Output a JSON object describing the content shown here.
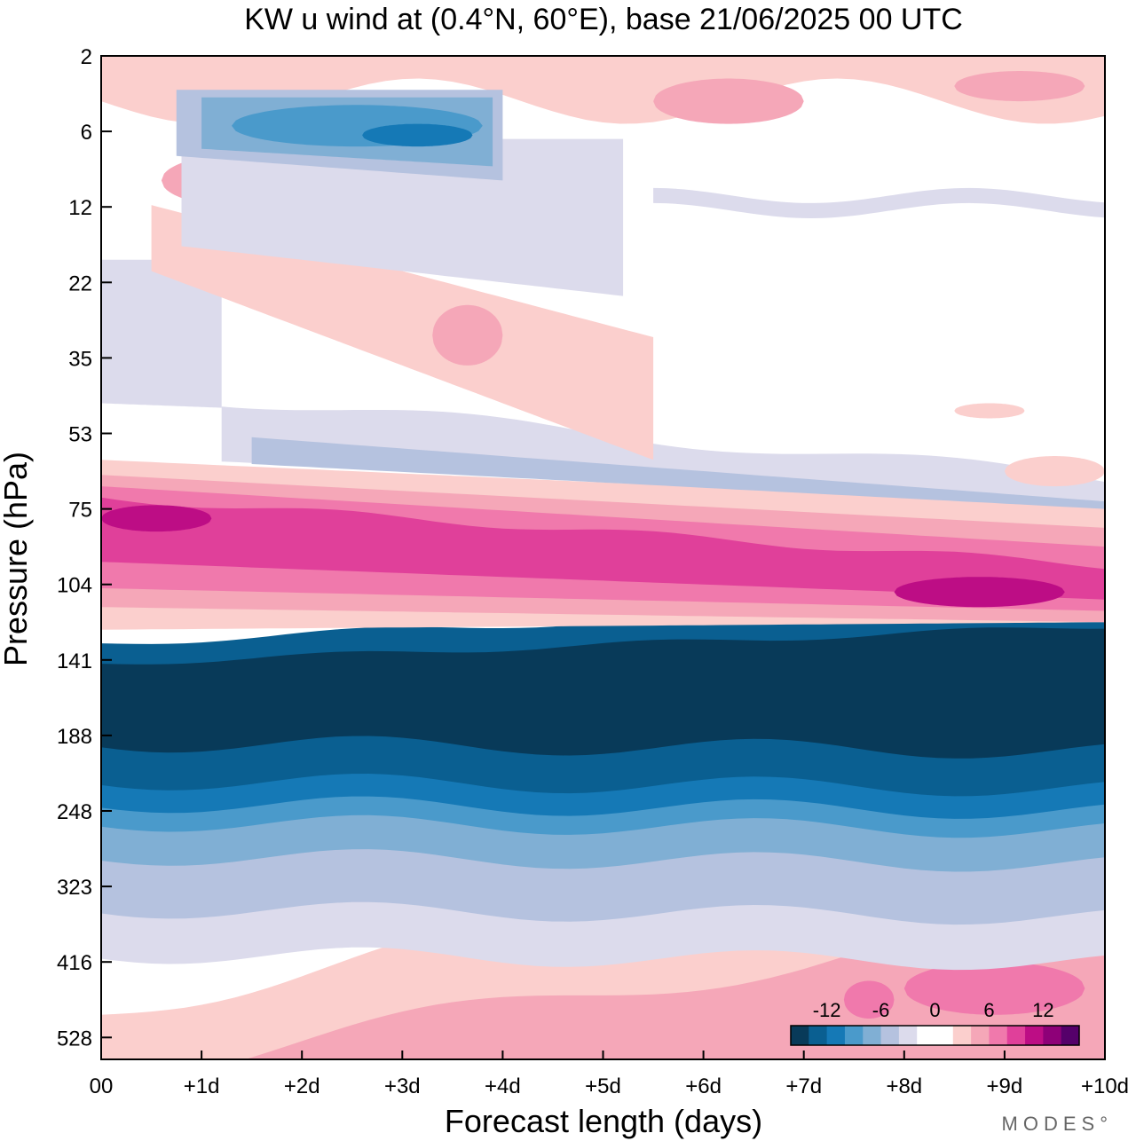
{
  "chart_data": {
    "type": "heatmap",
    "title": "KW u wind at (0.4°N, 60°E),  base 21/06/2025  00 UTC",
    "xlabel": "Forecast length (days)",
    "ylabel": "Pressure (hPa)",
    "x_unit": "days",
    "xlim": [
      0,
      10
    ],
    "x_ticks": [
      0,
      1,
      2,
      3,
      4,
      5,
      6,
      7,
      8,
      9,
      10
    ],
    "x_tick_labels": [
      "00",
      "+1d",
      "+2d",
      "+3d",
      "+4d",
      "+5d",
      "+6d",
      "+7d",
      "+8d",
      "+9d",
      "+10d"
    ],
    "y_tick_labels": [
      "2",
      "6",
      "12",
      "22",
      "35",
      "53",
      "75",
      "104",
      "141",
      "188",
      "248",
      "323",
      "416",
      "528"
    ],
    "y_scale": "pressure levels, 2 hPa at top to ~640 hPa at bottom",
    "colorbar": {
      "tick_labels": [
        "-12",
        "-6",
        "0",
        "6",
        "12"
      ],
      "levels": [
        -16,
        -14,
        -12,
        -10,
        -8,
        -6,
        -4,
        -2,
        0,
        2,
        4,
        6,
        8,
        10,
        12,
        14,
        16
      ],
      "colors": [
        "#083a59",
        "#0a5f91",
        "#1579b6",
        "#4a9acb",
        "#80afd4",
        "#b5c2df",
        "#dcdbec",
        "#ffffff",
        "#ffffff",
        "#fbcfcd",
        "#f5a7b8",
        "#f079ac",
        "#e0409a",
        "#bd0d85",
        "#8e0078",
        "#55006a"
      ]
    },
    "features": [
      {
        "description": "strong easterly core",
        "pressure_hPa": [
          125,
          200
        ],
        "days": [
          0,
          10
        ],
        "u_approx": -16
      },
      {
        "description": "westerly jet descending with time",
        "pressure_hPa": [
          70,
          115
        ],
        "days": [
          0,
          10
        ],
        "u_approx": 12
      },
      {
        "description": "weak westerlies in lower troposphere",
        "pressure_hPa": [
          380,
          640
        ],
        "days": [
          0,
          10
        ],
        "u_approx": 4
      },
      {
        "description": "easterlies in upper stratosphere",
        "pressure_hPa": [
          3,
          8
        ],
        "days": [
          0.8,
          4
        ],
        "u_approx": -12
      },
      {
        "description": "weak westerlies aloft",
        "pressure_hPa": [
          2,
          5
        ],
        "days": [
          0,
          10
        ],
        "u_approx": 6
      }
    ],
    "grid": false,
    "legend_position": "bottom-right"
  },
  "watermark": "MODES°"
}
